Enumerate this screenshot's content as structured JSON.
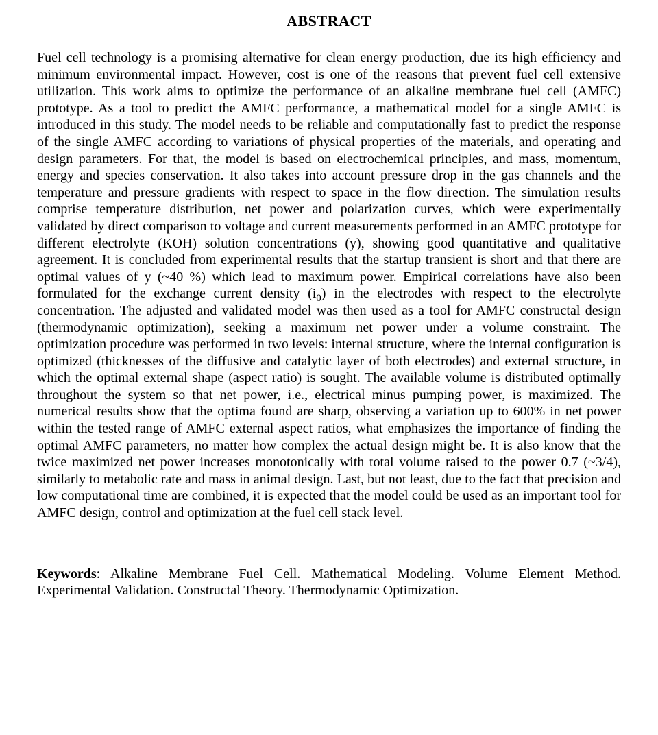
{
  "document": {
    "type": "abstract",
    "background_color": "#ffffff",
    "text_color": "#000000",
    "font_family": "Times New Roman",
    "title": "ABSTRACT",
    "title_fontsize_pt": 17,
    "body_fontsize_pt": 15,
    "body_alignment": "justify",
    "paragraphs": [
      "Fuel cell technology is a promising alternative for clean energy production, due its high efficiency and minimum environmental impact. However, cost is one of the reasons that prevent fuel cell extensive utilization. This work aims to optimize the performance of an alkaline membrane fuel cell (AMFC) prototype. As a tool to predict the AMFC performance, a mathematical model for a single AMFC is introduced in this study. The model needs to be reliable and computationally fast to predict the response of the single AMFC according to variations of physical properties of the materials, and operating and design parameters. For that, the model is based on electrochemical principles, and mass, momentum, energy and species conservation. It also takes into account pressure drop in the gas channels and the temperature and pressure gradients with respect to space in the flow direction. The simulation results comprise temperature distribution, net power and polarization curves, which were experimentally validated by direct comparison to voltage and current measurements performed in an AMFC prototype for different electrolyte (KOH) solution concentrations (y), showing good quantitative and qualitative agreement. It is concluded from experimental results that the startup transient is short and that there are optimal values of y (~40 %) which lead to maximum power. Empirical correlations have also been formulated for the exchange current density (i",
      ") in the electrodes with respect to the electrolyte concentration. The adjusted and validated model was then used as a tool for AMFC constructal design (thermodynamic optimization), seeking a maximum net power under a volume constraint. The optimization procedure was performed in two levels: internal structure, where the internal configuration is optimized (thicknesses of the diffusive and catalytic layer of both electrodes) and external structure, in which the optimal external shape (aspect ratio) is sought. The available volume is distributed optimally throughout the system so that net power, i.e., electrical minus pumping power, is maximized. The numerical results show that the optima found are sharp, observing a variation up to 600% in net power within the tested range of AMFC external aspect ratios, what emphasizes the importance of finding the optimal AMFC parameters, no matter how complex the actual design might be. It is also know that the twice maximized net power increases monotonically with total volume raised to the power 0.7 (~3/4), similarly to metabolic rate and mass in animal design. Last, but not least, due to the fact that precision and low computational time are combined, it is expected that the model could be used as an important tool for AMFC design, control and optimization at the fuel cell stack level."
    ],
    "subscript_between_paragraphs": "0",
    "keywords_label": "Keywords",
    "keywords_text": ": Alkaline Membrane Fuel Cell. Mathematical Modeling. Volume Element Method. Experimental Validation. Constructal Theory. Thermodynamic Optimization."
  }
}
